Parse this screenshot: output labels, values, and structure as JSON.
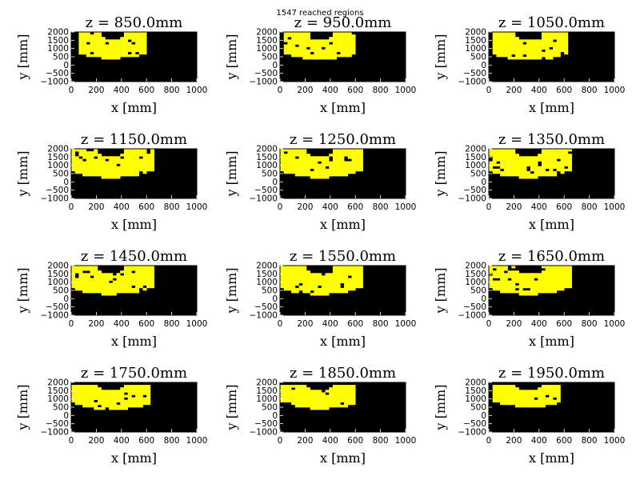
{
  "figure": {
    "suptitle": "1547 reached regions"
  },
  "chart_data": {
    "type": "heatmap",
    "xlabel": "x [mm]",
    "ylabel": "y [mm]",
    "xlim": [
      0,
      1000
    ],
    "ylim": [
      -1000,
      2000
    ],
    "xticks": [
      "0",
      "200",
      "400",
      "600",
      "800",
      "1000"
    ],
    "yticks": [
      "2000",
      "1500",
      "1000",
      "500",
      "0",
      "−500",
      "−1000"
    ],
    "colors": {
      "reached": "#ffff00",
      "unreached": "#000000",
      "frame": "#000000"
    },
    "panels": [
      {
        "title": "z = 850.0mm",
        "z": 850.0,
        "xmin": 60,
        "xmax": 590,
        "rout": 1450,
        "rin": 300,
        "ytop": 2000,
        "ybot": -1000
      },
      {
        "title": "z = 950.0mm",
        "z": 950.0,
        "xmin": 40,
        "xmax": 610,
        "rout": 1500,
        "rin": 320,
        "ytop": 2000,
        "ybot": -1000
      },
      {
        "title": "z = 1050.0mm",
        "z": 1050.0,
        "xmin": 20,
        "xmax": 620,
        "rout": 1550,
        "rin": 340,
        "ytop": 2000,
        "ybot": -1000
      },
      {
        "title": "z = 1150.0mm",
        "z": 1150.0,
        "xmin": 0,
        "xmax": 650,
        "rout": 1600,
        "rin": 330,
        "ytop": 2000,
        "ybot": -1000
      },
      {
        "title": "z = 1250.0mm",
        "z": 1250.0,
        "xmin": 0,
        "xmax": 650,
        "rout": 1600,
        "rin": 340,
        "ytop": 2000,
        "ybot": -1000
      },
      {
        "title": "z = 1350.0mm",
        "z": 1350.0,
        "xmin": 0,
        "xmax": 650,
        "rout": 1600,
        "rin": 350,
        "ytop": 2000,
        "ybot": -1000
      },
      {
        "title": "z = 1450.0mm",
        "z": 1450.0,
        "xmin": 0,
        "xmax": 650,
        "rout": 1600,
        "rin": 360,
        "ytop": 2000,
        "ybot": -1000
      },
      {
        "title": "z = 1550.0mm",
        "z": 1550.0,
        "xmin": 0,
        "xmax": 650,
        "rout": 1600,
        "rin": 370,
        "ytop": 2000,
        "ybot": -1000
      },
      {
        "title": "z = 1650.0mm",
        "z": 1650.0,
        "xmin": 0,
        "xmax": 650,
        "rout": 1600,
        "rin": 370,
        "ytop": 2000,
        "ybot": -1000
      },
      {
        "title": "z = 1750.0mm",
        "z": 1750.0,
        "xmin": 0,
        "xmax": 620,
        "rout": 1500,
        "rin": 360,
        "ytop": 1800,
        "ybot": -1000
      },
      {
        "title": "z = 1850.0mm",
        "z": 1850.0,
        "xmin": 0,
        "xmax": 600,
        "rout": 1450,
        "rin": 360,
        "ytop": 1800,
        "ybot": -1000
      },
      {
        "title": "z = 1950.0mm",
        "z": 1950.0,
        "xmin": 40,
        "xmax": 580,
        "rout": 1350,
        "rin": 330,
        "ytop": 1900,
        "ybot": -900
      }
    ]
  }
}
